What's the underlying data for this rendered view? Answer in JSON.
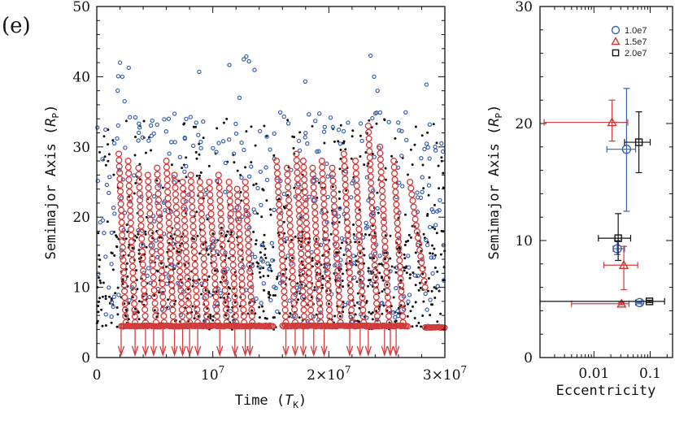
{
  "panel_label": "(e)",
  "colors": {
    "blue": "#3a62b4",
    "red": "#d23b3b",
    "black": "#111111"
  },
  "chart_data": [
    {
      "type": "scatter",
      "xlabel": "Time (T_K)",
      "xlabel_main": "Time (",
      "xlabel_sym": "T",
      "xlabel_sub": "K",
      "xlabel_close": ")",
      "ylabel_main": "Semimajor Axis (",
      "ylabel_sym": "R",
      "ylabel_sub": "P",
      "ylabel_close": ")",
      "xlim": [
        0,
        30000000
      ],
      "ylim": [
        0,
        50
      ],
      "xticks": [
        {
          "value": 0,
          "label": "0"
        },
        {
          "value": 10000000,
          "label": "10",
          "exp": "7"
        },
        {
          "value": 20000000,
          "label": "2×10",
          "exp": "7"
        },
        {
          "value": 30000000,
          "label": "3×10",
          "exp": "7"
        }
      ],
      "yticks": [
        {
          "value": 0,
          "label": "0"
        },
        {
          "value": 10,
          "label": "10"
        },
        {
          "value": 20,
          "label": "20"
        },
        {
          "value": 30,
          "label": "30"
        },
        {
          "value": 40,
          "label": "40"
        },
        {
          "value": 50,
          "label": "50"
        }
      ],
      "red_tracks": [
        {
          "x0": 1900000,
          "a0": 29,
          "x1": 2500000,
          "a1": 5
        },
        {
          "x0": 2700000,
          "a0": 28,
          "x1": 3300000,
          "a1": 5
        },
        {
          "x0": 3600000,
          "a0": 27,
          "x1": 4200000,
          "a1": 5
        },
        {
          "x0": 4400000,
          "a0": 26,
          "x1": 5100000,
          "a1": 5
        },
        {
          "x0": 5200000,
          "a0": 27,
          "x1": 5800000,
          "a1": 5
        },
        {
          "x0": 6000000,
          "a0": 28,
          "x1": 6600000,
          "a1": 5
        },
        {
          "x0": 6700000,
          "a0": 26,
          "x1": 7400000,
          "a1": 5
        },
        {
          "x0": 7400000,
          "a0": 25,
          "x1": 8000000,
          "a1": 5
        },
        {
          "x0": 8100000,
          "a0": 26,
          "x1": 8700000,
          "a1": 5
        },
        {
          "x0": 8900000,
          "a0": 25,
          "x1": 9500000,
          "a1": 5
        },
        {
          "x0": 9700000,
          "a0": 25,
          "x1": 10400000,
          "a1": 5
        },
        {
          "x0": 10500000,
          "a0": 26,
          "x1": 11200000,
          "a1": 5
        },
        {
          "x0": 11400000,
          "a0": 25,
          "x1": 12000000,
          "a1": 5
        },
        {
          "x0": 12100000,
          "a0": 24,
          "x1": 12700000,
          "a1": 5
        },
        {
          "x0": 12800000,
          "a0": 25,
          "x1": 13400000,
          "a1": 5
        },
        {
          "x0": 15500000,
          "a0": 28,
          "x1": 16300000,
          "a1": 5
        },
        {
          "x0": 16400000,
          "a0": 27,
          "x1": 17100000,
          "a1": 5
        },
        {
          "x0": 17200000,
          "a0": 29,
          "x1": 17900000,
          "a1": 5
        },
        {
          "x0": 17800000,
          "a0": 28,
          "x1": 18500000,
          "a1": 5
        },
        {
          "x0": 18600000,
          "a0": 27,
          "x1": 19300000,
          "a1": 5
        },
        {
          "x0": 19400000,
          "a0": 28,
          "x1": 20100000,
          "a1": 5
        },
        {
          "x0": 20300000,
          "a0": 27,
          "x1": 21000000,
          "a1": 5
        },
        {
          "x0": 21300000,
          "a0": 29,
          "x1": 22000000,
          "a1": 5
        },
        {
          "x0": 22300000,
          "a0": 28,
          "x1": 23000000,
          "a1": 5
        },
        {
          "x0": 23400000,
          "a0": 33,
          "x1": 24200000,
          "a1": 5
        },
        {
          "x0": 24400000,
          "a0": 30,
          "x1": 25200000,
          "a1": 5
        },
        {
          "x0": 25600000,
          "a0": 28,
          "x1": 26400000,
          "a1": 5
        },
        {
          "x0": 27000000,
          "a0": 25,
          "x1": 28300000,
          "a1": 10
        }
      ],
      "red_floor": [
        {
          "x0": 2100000,
          "x1": 15200000,
          "a": 4.5
        },
        {
          "x0": 16000000,
          "x1": 26800000,
          "a": 4.5
        },
        {
          "x0": 28300000,
          "x1": 30000000,
          "a": 4.3
        }
      ],
      "arrows_x": [
        2100000,
        3300000,
        4200000,
        4900000,
        5700000,
        6700000,
        7400000,
        8000000,
        8700000,
        10600000,
        11900000,
        12800000,
        13200000,
        16300000,
        17100000,
        17800000,
        18700000,
        19600000,
        21800000,
        22700000,
        23400000,
        24800000,
        25300000,
        25800000
      ]
    },
    {
      "type": "scatter_errorbar",
      "xlabel": "Eccentricity",
      "ylabel_main": "Semimajor Axis (",
      "ylabel_sym": "R",
      "ylabel_sub": "P",
      "ylabel_close": ")",
      "xscale": "log",
      "xlim": [
        0.0011,
        0.25
      ],
      "ylim": [
        0,
        30
      ],
      "xticks": [
        {
          "value": 0.01,
          "label": "0.01"
        },
        {
          "value": 0.1,
          "label": "0.1"
        }
      ],
      "yticks": [
        {
          "value": 0,
          "label": "0"
        },
        {
          "value": 10,
          "label": "10"
        },
        {
          "value": 20,
          "label": "20"
        },
        {
          "value": 30,
          "label": "30"
        }
      ],
      "series": [
        {
          "name": "1.0e7",
          "marker": "circle",
          "color": "#3a62b4",
          "points": [
            {
              "e": 0.038,
              "a": 17.8,
              "ex": [
                0.017,
                0.055
              ],
              "ay": [
                12.5,
                23.0
              ]
            },
            {
              "e": 0.026,
              "a": 9.3,
              "ex": [
                0.022,
                0.035
              ],
              "ay": [
                8.8,
                10.0
              ]
            },
            {
              "e": 0.065,
              "a": 4.7,
              "ex": [
                0.055,
                0.07
              ],
              "ay": [
                4.6,
                4.8
              ]
            }
          ]
        },
        {
          "name": "1.5e7",
          "marker": "triangle",
          "color": "#d23b3b",
          "points": [
            {
              "e": 0.021,
              "a": 20.1,
              "ex": [
                0.0013,
                0.04
              ],
              "ay": [
                18.5,
                22.0
              ]
            },
            {
              "e": 0.034,
              "a": 7.9,
              "ex": [
                0.015,
                0.06
              ],
              "ay": [
                5.8,
                9.5
              ]
            },
            {
              "e": 0.031,
              "a": 4.6,
              "ex": [
                0.004,
                0.042
              ],
              "ay": [
                4.5,
                4.7
              ]
            }
          ]
        },
        {
          "name": "2.0e7",
          "marker": "square",
          "color": "#111111",
          "points": [
            {
              "e": 0.063,
              "a": 18.4,
              "ex": [
                0.035,
                0.1
              ],
              "ay": [
                15.8,
                21.0
              ]
            },
            {
              "e": 0.027,
              "a": 10.2,
              "ex": [
                0.012,
                0.045
              ],
              "ay": [
                8.3,
                12.3
              ]
            },
            {
              "e": 0.097,
              "a": 4.8,
              "ex": [
                0.0011,
                0.18
              ],
              "ay": [
                4.7,
                4.9
              ]
            }
          ]
        }
      ]
    }
  ]
}
